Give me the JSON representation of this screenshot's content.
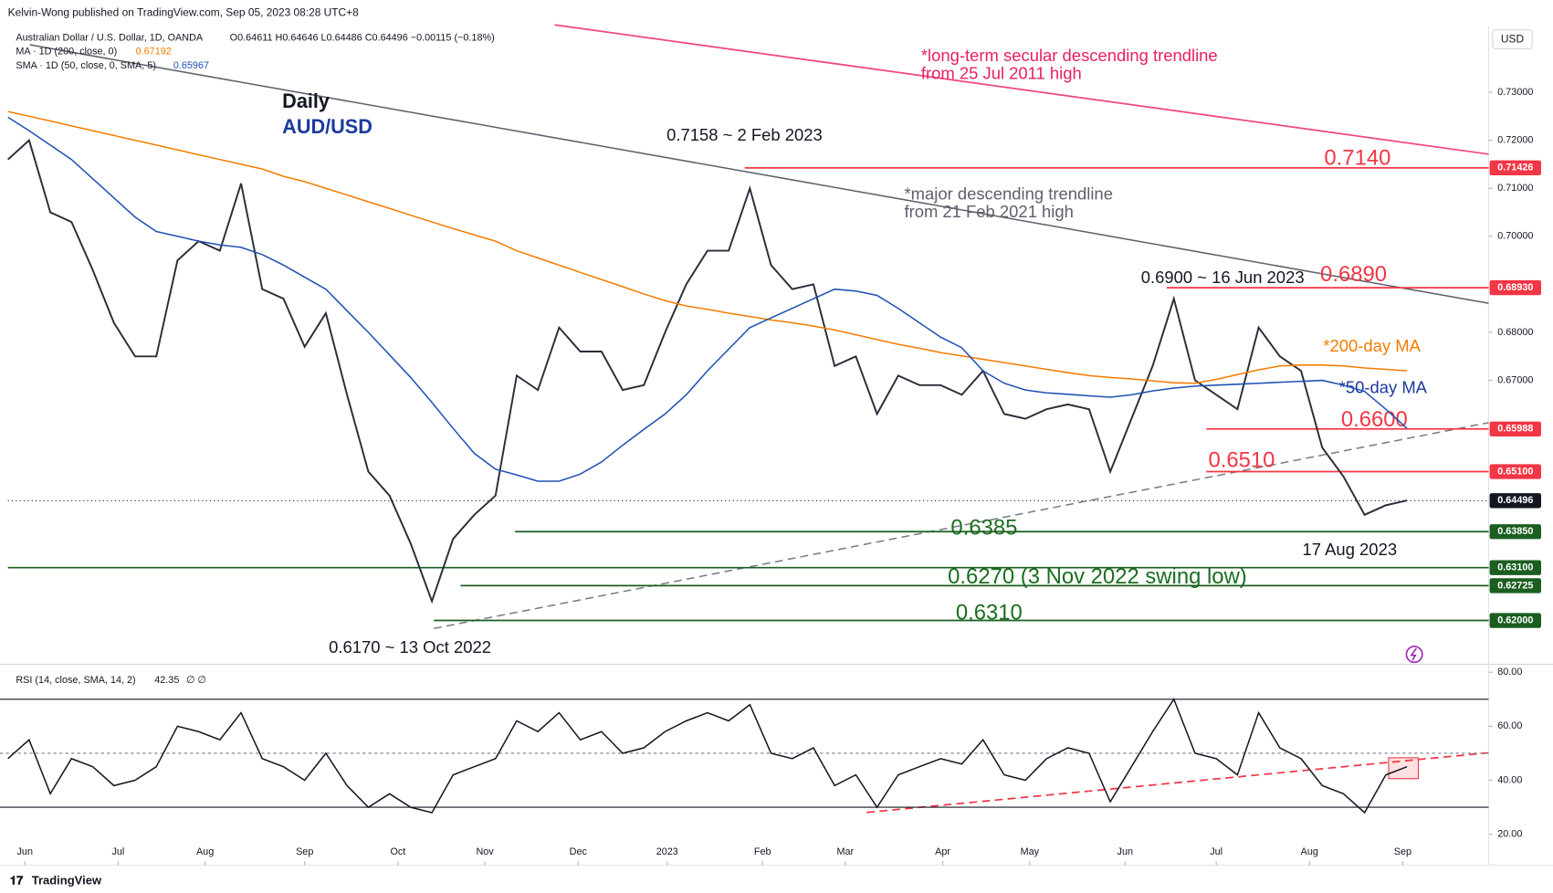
{
  "header": {
    "publisher": "Kelvin-Wong published on TradingView.com, Sep 05, 2023 08:28 UTC+8",
    "symbol": "Australian Dollar / U.S. Dollar, 1D, OANDA",
    "ohlc": "O0.64611 H0.64646 L0.64486 C0.64496 −0.00115 (−0.18%)",
    "ma_label": "MA · 1D (200, close, 0)",
    "ma_value": "0.67192",
    "sma_label": "SMA · 1D (50, close, 0, SMA, 5)",
    "sma_value": "0.65967",
    "rsi_label": "RSI (14, close, SMA, 14, 2)",
    "rsi_value": "42.35",
    "rsi_extra": "∅ ∅",
    "currency": "USD",
    "brand": "TradingView"
  },
  "annotations": [
    "Daily",
    "AUD/USD",
    "*long-term secular descending trendline",
    "from 25 Jul 2011 high",
    "0.7158 ~ 2 Feb 2023",
    "0.7140",
    "*major descending trendline",
    "from 21 Feb 2021 high",
    "0.6900 ~ 16 Jun 2023",
    "0.6890",
    "*200-day MA",
    "*50-day MA",
    "0.6600",
    "0.6510",
    "0.6385",
    "17 Aug 2023",
    "0.6270 (3 Nov 2022 swing low)",
    "0.6310",
    "0.6170 ~ 13 Oct 2022"
  ],
  "chart_data": [
    {
      "type": "line",
      "xlim": [
        0,
        69.85
      ],
      "ylim": [
        0.6115,
        0.743
      ],
      "xticks": [
        {
          "value": 0.8,
          "label": "Jun"
        },
        {
          "value": 5.2,
          "label": "Jul"
        },
        {
          "value": 9.3,
          "label": "Aug"
        },
        {
          "value": 14.0,
          "label": "Sep"
        },
        {
          "value": 18.4,
          "label": "Oct"
        },
        {
          "value": 22.5,
          "label": "Nov"
        },
        {
          "value": 26.9,
          "label": "Dec"
        },
        {
          "value": 31.1,
          "label": "2023"
        },
        {
          "value": 35.6,
          "label": "Feb"
        },
        {
          "value": 39.5,
          "label": "Mar"
        },
        {
          "value": 44.1,
          "label": "Apr"
        },
        {
          "value": 48.2,
          "label": "May"
        },
        {
          "value": 52.7,
          "label": "Jun"
        },
        {
          "value": 57.0,
          "label": "Jul"
        },
        {
          "value": 61.4,
          "label": "Aug"
        },
        {
          "value": 65.8,
          "label": "Sep"
        }
      ],
      "yticks": [
        {
          "value": 0.73,
          "label": "0.73000"
        },
        {
          "value": 0.72,
          "label": "0.72000"
        },
        {
          "value": 0.71,
          "label": "0.71000"
        },
        {
          "value": 0.7,
          "label": "0.70000"
        },
        {
          "value": 0.68,
          "label": "0.68000"
        },
        {
          "value": 0.67,
          "label": "0.67000"
        }
      ],
      "levels": [
        {
          "value": 0.71426,
          "label": "0.71426",
          "color": "#f23645"
        },
        {
          "value": 0.6893,
          "label": "0.68930",
          "color": "#f23645"
        },
        {
          "value": 0.65988,
          "label": "0.65988",
          "color": "#f23645"
        },
        {
          "value": 0.651,
          "label": "0.65100",
          "color": "#f23645"
        },
        {
          "value": 0.64496,
          "label": "0.64496",
          "color": "#131722"
        },
        {
          "value": 0.6385,
          "label": "0.63850",
          "color": "#1b5e20"
        },
        {
          "value": 0.631,
          "label": "0.63100",
          "color": "#1b5e20"
        },
        {
          "value": 0.62725,
          "label": "0.62725",
          "color": "#1b5e20"
        },
        {
          "value": 0.62,
          "label": "0.62000",
          "color": "#1b5e20"
        }
      ],
      "series": [
        {
          "color": "#2a2e39",
          "values": [
            0.716,
            0.72,
            0.705,
            0.703,
            0.693,
            0.682,
            0.675,
            0.675,
            0.695,
            0.699,
            0.697,
            0.711,
            0.689,
            0.687,
            0.677,
            0.684,
            0.667,
            0.651,
            0.646,
            0.636,
            0.624,
            0.637,
            0.642,
            0.646,
            0.671,
            0.668,
            0.681,
            0.676,
            0.676,
            0.668,
            0.669,
            0.68,
            0.69,
            0.697,
            0.697,
            0.71,
            0.694,
            0.689,
            0.69,
            0.673,
            0.675,
            0.663,
            0.671,
            0.669,
            0.669,
            0.667,
            0.672,
            0.663,
            0.662,
            0.664,
            0.665,
            0.664,
            0.651,
            0.662,
            0.673,
            0.687,
            0.67,
            0.667,
            0.664,
            0.681,
            0.675,
            0.672,
            0.656,
            0.65,
            0.642,
            0.644,
            0.645
          ]
        },
        {
          "color": "#f57c00",
          "values": [
            0.726,
            0.725,
            0.724,
            0.723,
            0.722,
            0.721,
            0.72,
            0.719,
            0.718,
            0.717,
            0.716,
            0.715,
            0.714,
            0.7125,
            0.7114,
            0.71,
            0.7086,
            0.7072,
            0.7058,
            0.7044,
            0.703,
            0.7016,
            0.7003,
            0.699,
            0.697,
            0.6955,
            0.694,
            0.6925,
            0.691,
            0.6895,
            0.688,
            0.6866,
            0.6855,
            0.6848,
            0.684,
            0.6833,
            0.6826,
            0.682,
            0.6813,
            0.6805,
            0.6795,
            0.6785,
            0.6775,
            0.6767,
            0.6758,
            0.6751,
            0.6744,
            0.6737,
            0.673,
            0.6723,
            0.6716,
            0.671,
            0.6706,
            0.6703,
            0.6699,
            0.6695,
            0.6694,
            0.6702,
            0.6712,
            0.6722,
            0.673,
            0.6732,
            0.6732,
            0.673,
            0.6726,
            0.6723,
            0.672
          ]
        },
        {
          "color": "#1e50b4",
          "values": [
            0.7248,
            0.722,
            0.719,
            0.716,
            0.712,
            0.708,
            0.704,
            0.701,
            0.7,
            0.699,
            0.6982,
            0.6977,
            0.6962,
            0.694,
            0.6915,
            0.689,
            0.6845,
            0.68,
            0.6753,
            0.6706,
            0.6654,
            0.66,
            0.6548,
            0.6515,
            0.6503,
            0.649,
            0.649,
            0.6505,
            0.653,
            0.6565,
            0.6598,
            0.663,
            0.667,
            0.672,
            0.6765,
            0.681,
            0.683,
            0.685,
            0.687,
            0.689,
            0.6886,
            0.6877,
            0.685,
            0.682,
            0.679,
            0.6768,
            0.672,
            0.6694,
            0.668,
            0.6674,
            0.6671,
            0.6668,
            0.6665,
            0.667,
            0.6678,
            0.6684,
            0.6688,
            0.669,
            0.6692,
            0.6694,
            0.6696,
            0.6698,
            0.67,
            0.669,
            0.6677,
            0.664,
            0.66
          ]
        }
      ]
    },
    {
      "type": "line",
      "ylim": [
        10.4,
        82.2
      ],
      "yticks": [
        {
          "value": 80,
          "label": "80.00"
        },
        {
          "value": 60,
          "label": "60.00"
        },
        {
          "value": 40,
          "label": "40.00"
        },
        {
          "value": 20,
          "label": "20.00"
        }
      ],
      "bands": [
        70,
        30
      ],
      "midline": 50,
      "series": [
        {
          "color": "#131722",
          "values": [
            48,
            55,
            35,
            48,
            45,
            38,
            40,
            45,
            60,
            58,
            55,
            65,
            48,
            45,
            40,
            50,
            38,
            30,
            35,
            30,
            28,
            42,
            45,
            48,
            62,
            58,
            65,
            55,
            58,
            50,
            52,
            58,
            62,
            65,
            62,
            68,
            50,
            48,
            52,
            38,
            42,
            30,
            42,
            45,
            48,
            46,
            55,
            42,
            40,
            48,
            52,
            50,
            32,
            45,
            58,
            70,
            50,
            48,
            42,
            65,
            52,
            48,
            38,
            35,
            28,
            42,
            45
          ]
        }
      ]
    }
  ]
}
